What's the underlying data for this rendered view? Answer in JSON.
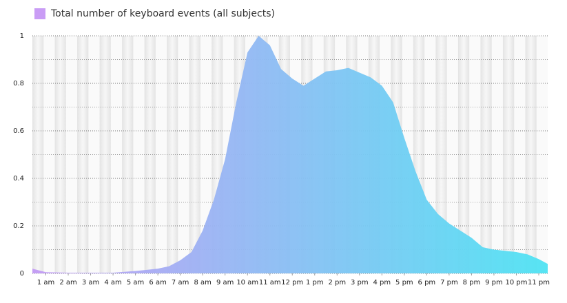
{
  "chart_data": {
    "type": "area",
    "x": [
      0.4,
      1,
      2,
      3,
      4,
      5,
      5.5,
      6,
      6.5,
      7,
      7.5,
      8,
      8.5,
      9,
      9.5,
      10,
      10.5,
      11,
      11.5,
      12,
      12.5,
      13,
      13.5,
      14,
      14.5,
      15,
      15.5,
      16,
      16.5,
      17,
      17.5,
      18,
      18.5,
      19,
      19.5,
      20,
      20.5,
      21,
      21.5,
      22,
      22.5,
      23,
      23.4
    ],
    "series": [
      {
        "name": "Total number of keyboard events (all subjects)",
        "color": "#c99cf5",
        "values": [
          0.02,
          0.005,
          0.003,
          0.003,
          0.003,
          0.01,
          0.015,
          0.02,
          0.03,
          0.055,
          0.09,
          0.18,
          0.31,
          0.48,
          0.72,
          0.93,
          1.0,
          0.96,
          0.86,
          0.82,
          0.79,
          0.82,
          0.85,
          0.855,
          0.865,
          0.845,
          0.825,
          0.79,
          0.72,
          0.57,
          0.43,
          0.31,
          0.25,
          0.21,
          0.18,
          0.15,
          0.11,
          0.1,
          0.095,
          0.09,
          0.08,
          0.06,
          0.04
        ]
      }
    ],
    "gradient": [
      "#c39af4",
      "#4fe3f3"
    ],
    "xlim": [
      0.4,
      23.4
    ],
    "xticks": [
      {
        "value": 1,
        "label": "1 am"
      },
      {
        "value": 2,
        "label": "2 am"
      },
      {
        "value": 3,
        "label": "3 am"
      },
      {
        "value": 4,
        "label": "4 am"
      },
      {
        "value": 5,
        "label": "5 am"
      },
      {
        "value": 6,
        "label": "6 am"
      },
      {
        "value": 7,
        "label": "7 am"
      },
      {
        "value": 8,
        "label": "8 am"
      },
      {
        "value": 9,
        "label": "9 am"
      },
      {
        "value": 10,
        "label": "10 am"
      },
      {
        "value": 11,
        "label": "11 am"
      },
      {
        "value": 12,
        "label": "12 pm"
      },
      {
        "value": 13,
        "label": "1 pm"
      },
      {
        "value": 14,
        "label": "2 pm"
      },
      {
        "value": 15,
        "label": "3 pm"
      },
      {
        "value": 16,
        "label": "4 pm"
      },
      {
        "value": 17,
        "label": "5 pm"
      },
      {
        "value": 18,
        "label": "6 pm"
      },
      {
        "value": 19,
        "label": "7 pm"
      },
      {
        "value": 20,
        "label": "8 pm"
      },
      {
        "value": 21,
        "label": "9 pm"
      },
      {
        "value": 22,
        "label": "10 pm"
      },
      {
        "value": 23,
        "label": "11 pm"
      }
    ],
    "ylim": [
      0,
      1
    ],
    "yticks": [
      0,
      0.2,
      0.4,
      0.6,
      0.8,
      1
    ],
    "minor_yticks": [
      0.1,
      0.3,
      0.5,
      0.7,
      0.9
    ],
    "grid": true
  }
}
